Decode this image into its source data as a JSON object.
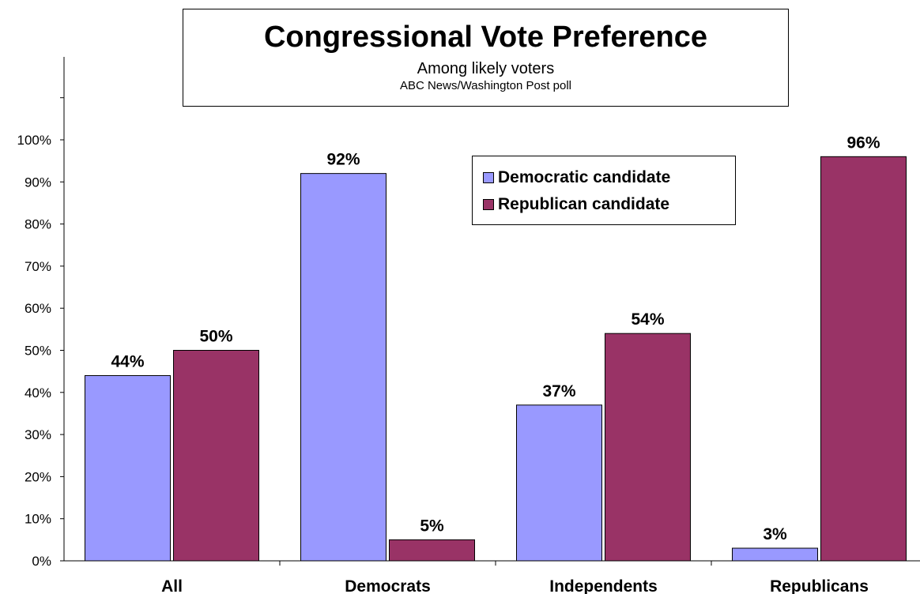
{
  "chart_data": {
    "type": "bar",
    "title": "Congressional Vote Preference",
    "subtitle": "Among likely voters",
    "source": "ABC News/Washington  Post poll",
    "categories": [
      "All",
      "Democrats",
      "Independents",
      "Republicans"
    ],
    "series": [
      {
        "name": "Democratic candidate",
        "values": [
          44,
          92,
          37,
          3
        ],
        "color": "#9999ff"
      },
      {
        "name": "Republican candidate",
        "values": [
          50,
          5,
          54,
          96
        ],
        "color": "#993366"
      }
    ],
    "value_labels": {
      "Democratic candidate": [
        "44%",
        "92%",
        "37%",
        "3%"
      ],
      "Republican candidate": [
        "50%",
        "5%",
        "54%",
        "96%"
      ]
    },
    "ylim": [
      0,
      100
    ],
    "yticks": [
      0,
      10,
      20,
      30,
      40,
      50,
      60,
      70,
      80,
      90,
      100
    ],
    "ytick_labels": [
      "0%",
      "10%",
      "20%",
      "30%",
      "40%",
      "50%",
      "60%",
      "70%",
      "80%",
      "90%",
      "100%"
    ],
    "grid": false,
    "legend_position": "top-right"
  }
}
